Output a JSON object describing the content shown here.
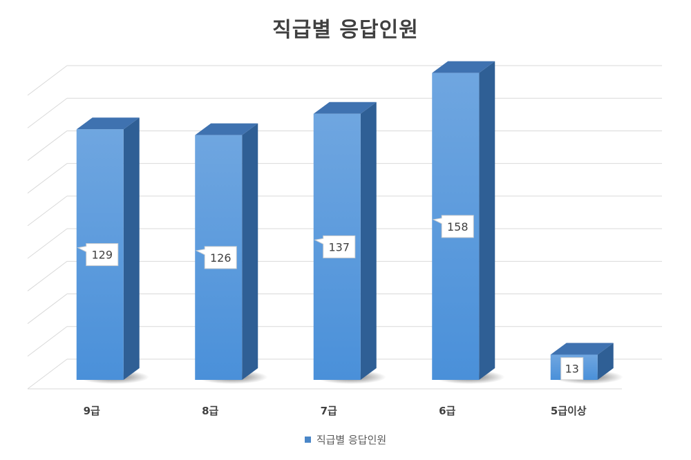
{
  "chart_data": {
    "type": "bar",
    "title": "직급별 응답인원",
    "categories": [
      "9급",
      "8급",
      "7급",
      "6급",
      "5급이상"
    ],
    "series": [
      {
        "name": "직급별 응답인원",
        "values": [
          129,
          126,
          137,
          158,
          13
        ]
      }
    ],
    "ylim": [
      0,
      180
    ],
    "grid": true,
    "legend_position": "bottom",
    "colors": {
      "bar_front": "#4a90d9",
      "bar_side": "#2f5f95",
      "bar_top": "#3f72b0",
      "grid": "#d9d9d9"
    }
  }
}
